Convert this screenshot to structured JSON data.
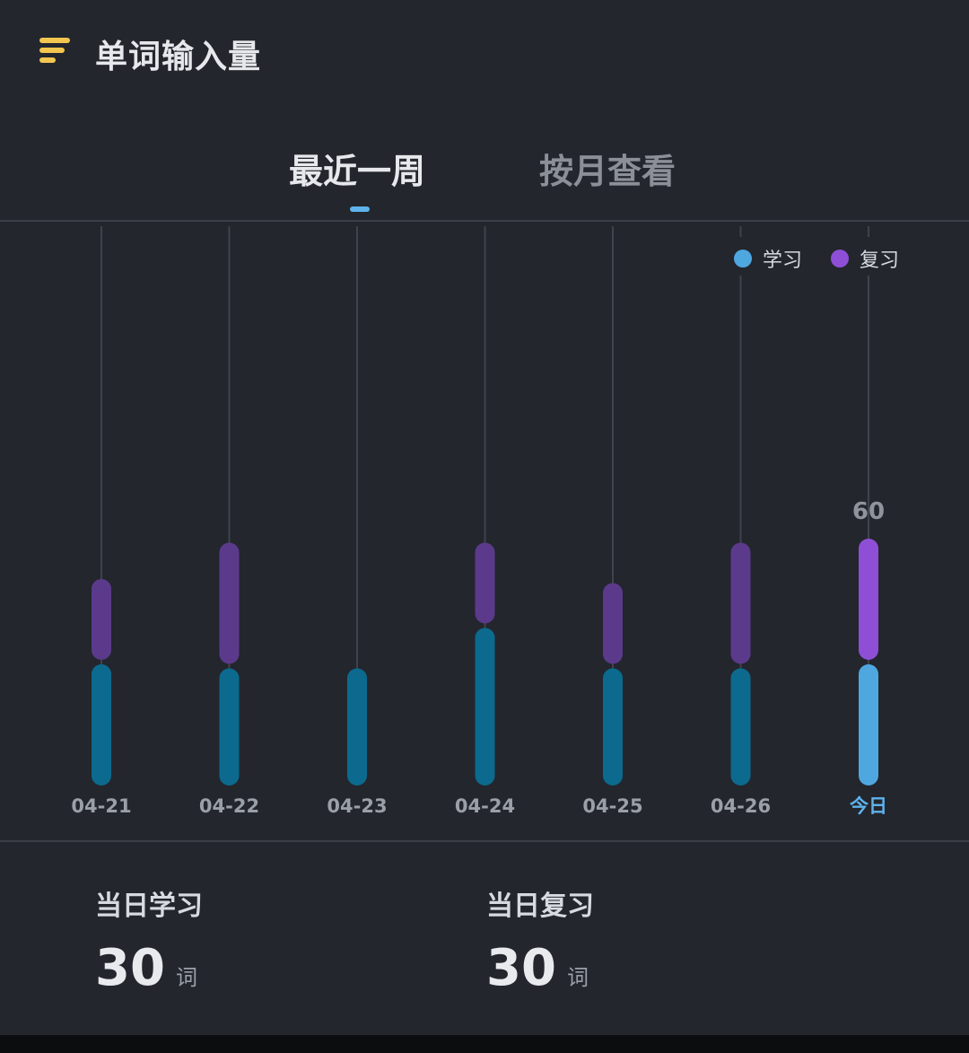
{
  "header": {
    "title": "单词输入量",
    "icon": "menu-lines-icon"
  },
  "tabs": [
    {
      "label": "最近一周",
      "active": true
    },
    {
      "label": "按月查看",
      "active": false
    }
  ],
  "legend": [
    {
      "label": "学习",
      "color": "#4fa7e0"
    },
    {
      "label": "复习",
      "color": "#8e4fd6"
    }
  ],
  "chart_data": {
    "type": "bar",
    "stacked": true,
    "categories": [
      "04-21",
      "04-22",
      "04-23",
      "04-24",
      "04-25",
      "04-26",
      "今日"
    ],
    "series": [
      {
        "name": "学习",
        "values": [
          30,
          29,
          29,
          39,
          29,
          29,
          30
        ],
        "color": "#0c6a8f",
        "highlight_color": "#4fa7e0"
      },
      {
        "name": "复习",
        "values": [
          20,
          30,
          0,
          20,
          20,
          30,
          30
        ],
        "color": "#5b3a8c",
        "highlight_color": "#8e4fd6"
      }
    ],
    "highlight_index": 6,
    "highlight_label": "60",
    "ylim": [
      0,
      140
    ],
    "legend_position": "top-right"
  },
  "stats": {
    "learn": {
      "label": "当日学习",
      "value": "30",
      "unit": "词"
    },
    "review": {
      "label": "当日复习",
      "value": "30",
      "unit": "词"
    }
  }
}
